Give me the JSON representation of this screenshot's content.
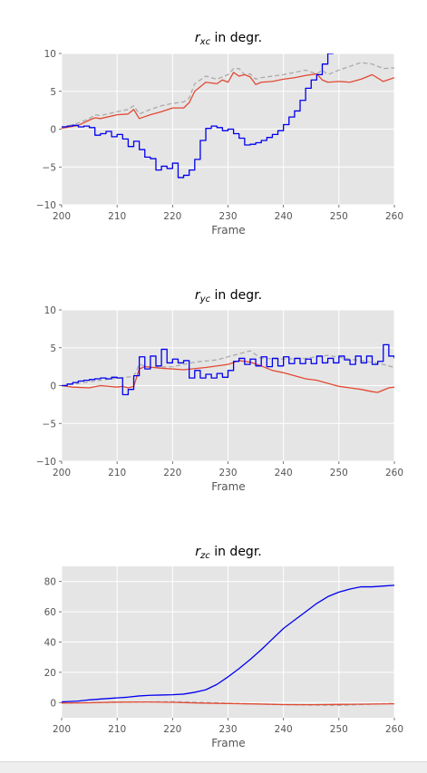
{
  "chart_data": [
    {
      "type": "line",
      "title_var": "r",
      "title_sub": "xc",
      "title_rest": " in degr.",
      "xlabel": "Frame",
      "xlim": [
        200,
        260
      ],
      "ylim": [
        -10,
        10
      ],
      "xticks": [
        200,
        210,
        220,
        230,
        240,
        250,
        260
      ],
      "yticks": [
        -10,
        -5,
        0,
        5,
        10
      ],
      "ytick_labels": [
        "−10",
        "−5",
        "0",
        "5",
        "10"
      ],
      "grid": true,
      "series": [
        {
          "color": "#aaaaaa",
          "dashed": true,
          "step": false,
          "x": [
            200,
            203,
            205,
            206,
            207,
            210,
            212,
            213,
            214,
            216,
            218,
            220,
            222,
            223,
            224,
            226,
            228,
            230,
            231,
            232,
            233,
            234,
            235,
            236,
            238,
            240,
            242,
            244,
            246,
            247,
            248,
            250,
            252,
            254,
            256,
            258,
            260
          ],
          "y": [
            0.2,
            0.8,
            1.4,
            1.9,
            1.8,
            2.3,
            2.6,
            3.1,
            2.0,
            2.6,
            3.1,
            3.4,
            3.6,
            4.1,
            6.0,
            7.0,
            6.6,
            7.2,
            8.0,
            8.0,
            7.2,
            7.3,
            6.6,
            6.8,
            7.0,
            7.2,
            7.5,
            7.8,
            7.3,
            7.8,
            7.2,
            7.8,
            8.3,
            8.8,
            8.6,
            8.0,
            8.1
          ]
        },
        {
          "color": "#e24a33",
          "dashed": false,
          "step": false,
          "x": [
            200,
            203,
            205,
            206,
            207,
            210,
            212,
            213,
            214,
            216,
            218,
            220,
            222,
            223,
            224,
            226,
            228,
            229,
            230,
            231,
            232,
            233,
            234,
            235,
            236,
            238,
            240,
            242,
            244,
            246,
            247,
            248,
            250,
            252,
            254,
            256,
            258,
            260
          ],
          "y": [
            0.1,
            0.5,
            1.2,
            1.5,
            1.4,
            1.9,
            2.0,
            2.6,
            1.4,
            1.9,
            2.3,
            2.8,
            2.8,
            3.5,
            5.0,
            6.2,
            6.0,
            6.5,
            6.2,
            7.5,
            7.0,
            7.2,
            6.9,
            5.9,
            6.2,
            6.3,
            6.6,
            6.8,
            7.1,
            7.3,
            6.5,
            6.2,
            6.3,
            6.2,
            6.6,
            7.2,
            6.3,
            6.8
          ]
        },
        {
          "color": "#0000ee",
          "dashed": false,
          "step": true,
          "x": [
            200,
            201,
            202,
            203,
            204,
            205,
            206,
            207,
            208,
            209,
            210,
            211,
            212,
            213,
            214,
            215,
            216,
            217,
            218,
            219,
            220,
            221,
            222,
            223,
            224,
            225,
            226,
            227,
            228,
            229,
            230,
            231,
            232,
            233,
            234,
            235,
            236,
            237,
            238,
            239,
            240,
            241,
            242,
            243,
            244,
            245,
            246,
            247,
            248,
            249
          ],
          "y": [
            0.3,
            0.4,
            0.5,
            0.3,
            0.4,
            0.2,
            -0.8,
            -0.6,
            -0.3,
            -1.0,
            -0.7,
            -1.3,
            -2.3,
            -1.6,
            -2.7,
            -3.7,
            -3.9,
            -5.4,
            -4.9,
            -5.2,
            -4.5,
            -6.4,
            -6.1,
            -5.4,
            -4.0,
            -1.5,
            0.1,
            0.4,
            0.2,
            -0.2,
            0.0,
            -0.6,
            -1.2,
            -2.1,
            -2.0,
            -1.8,
            -1.5,
            -1.1,
            -0.7,
            -0.2,
            0.6,
            1.6,
            2.4,
            3.8,
            5.4,
            6.5,
            7.2,
            8.6,
            10.0,
            10.0
          ]
        }
      ]
    },
    {
      "type": "line",
      "title_var": "r",
      "title_sub": "yc",
      "title_rest": " in degr.",
      "xlabel": "Frame",
      "xlim": [
        200,
        260
      ],
      "ylim": [
        -10,
        10
      ],
      "xticks": [
        200,
        210,
        220,
        230,
        240,
        250,
        260
      ],
      "yticks": [
        -10,
        -5,
        0,
        5,
        10
      ],
      "ytick_labels": [
        "−10",
        "−5",
        "0",
        "5",
        "10"
      ],
      "grid": true,
      "series": [
        {
          "color": "#aaaaaa",
          "dashed": true,
          "step": false,
          "x": [
            200,
            205,
            210,
            213,
            214,
            216,
            220,
            224,
            228,
            232,
            234,
            236,
            240,
            244,
            248,
            252,
            255,
            258,
            260
          ],
          "y": [
            0.0,
            0.5,
            1.0,
            1.2,
            2.8,
            2.4,
            2.5,
            3.1,
            3.4,
            4.2,
            4.6,
            3.6,
            3.5,
            3.6,
            4.0,
            3.5,
            3.2,
            2.8,
            2.4
          ]
        },
        {
          "color": "#e24a33",
          "dashed": false,
          "step": false,
          "x": [
            200,
            202,
            205,
            207,
            210,
            211,
            212,
            213,
            214,
            215,
            218,
            222,
            226,
            230,
            232,
            234,
            236,
            238,
            240,
            242,
            244,
            246,
            248,
            250,
            252,
            254,
            256,
            257,
            258,
            259,
            260
          ],
          "y": [
            0.0,
            -0.2,
            -0.3,
            0.0,
            -0.2,
            -0.1,
            -0.3,
            -0.1,
            2.2,
            2.5,
            2.3,
            2.1,
            2.4,
            2.8,
            3.3,
            3.1,
            2.6,
            2.0,
            1.7,
            1.3,
            0.9,
            0.7,
            0.3,
            -0.1,
            -0.3,
            -0.5,
            -0.8,
            -0.9,
            -0.6,
            -0.3,
            -0.2
          ]
        },
        {
          "color": "#0000ee",
          "dashed": false,
          "step": true,
          "x": [
            200,
            201,
            202,
            203,
            204,
            205,
            206,
            207,
            208,
            209,
            210,
            211,
            212,
            213,
            214,
            215,
            216,
            217,
            218,
            219,
            220,
            221,
            222,
            223,
            224,
            225,
            226,
            227,
            228,
            229,
            230,
            231,
            232,
            233,
            234,
            235,
            236,
            237,
            238,
            239,
            240,
            241,
            242,
            243,
            244,
            245,
            246,
            247,
            248,
            249,
            250,
            251,
            252,
            253,
            254,
            255,
            256,
            257,
            258,
            259,
            260
          ],
          "y": [
            0.0,
            0.2,
            0.4,
            0.6,
            0.7,
            0.8,
            0.9,
            1.0,
            0.9,
            1.1,
            1.0,
            -1.2,
            -0.5,
            1.3,
            3.8,
            2.2,
            3.9,
            2.6,
            4.8,
            3.0,
            3.5,
            3.0,
            3.3,
            1.0,
            2.0,
            1.0,
            1.5,
            1.0,
            1.6,
            1.1,
            2.0,
            3.2,
            3.6,
            2.8,
            3.5,
            2.6,
            3.8,
            2.5,
            3.6,
            2.6,
            3.8,
            2.9,
            3.6,
            2.9,
            3.5,
            2.9,
            3.9,
            3.0,
            3.6,
            3.0,
            3.9,
            3.4,
            2.8,
            3.9,
            3.0,
            3.9,
            2.8,
            3.2,
            5.4,
            3.9,
            3.6
          ]
        }
      ]
    },
    {
      "type": "line",
      "title_var": "r",
      "title_sub": "zc",
      "title_rest": " in degr.",
      "xlabel": "Frame",
      "xlim": [
        200,
        260
      ],
      "ylim": [
        -10,
        90
      ],
      "xticks": [
        200,
        210,
        220,
        230,
        240,
        250,
        260
      ],
      "yticks": [
        0,
        20,
        40,
        60,
        80
      ],
      "ytick_labels": [
        "0",
        "20",
        "40",
        "60",
        "80"
      ],
      "grid": true,
      "series": [
        {
          "color": "#aaaaaa",
          "dashed": true,
          "step": false,
          "x": [
            200,
            210,
            220,
            230,
            240,
            250,
            260
          ],
          "y": [
            -0.3,
            0.2,
            0.6,
            -0.4,
            -1.4,
            -1.8,
            -0.5
          ]
        },
        {
          "color": "#e24a33",
          "dashed": false,
          "step": false,
          "x": [
            200,
            205,
            210,
            215,
            220,
            225,
            230,
            235,
            240,
            245,
            250,
            255,
            260
          ],
          "y": [
            -0.3,
            -0.1,
            0.3,
            0.4,
            0.2,
            -0.3,
            -0.6,
            -0.9,
            -1.3,
            -1.4,
            -1.2,
            -1.0,
            -0.8
          ]
        },
        {
          "color": "#0000ee",
          "dashed": false,
          "step": false,
          "x": [
            200,
            203,
            205,
            208,
            210,
            212,
            214,
            216,
            218,
            220,
            222,
            224,
            226,
            228,
            230,
            232,
            234,
            236,
            238,
            240,
            242,
            244,
            246,
            248,
            250,
            252,
            254,
            256,
            258,
            260
          ],
          "y": [
            0.5,
            1.0,
            1.8,
            2.6,
            3.1,
            3.6,
            4.4,
            4.8,
            5.0,
            5.2,
            5.6,
            6.8,
            8.5,
            12.0,
            17.0,
            22.5,
            28.5,
            35.0,
            42.0,
            49.0,
            54.5,
            60.0,
            65.5,
            70.0,
            73.0,
            75.0,
            76.5,
            76.5,
            77.0,
            77.5
          ]
        }
      ]
    }
  ]
}
